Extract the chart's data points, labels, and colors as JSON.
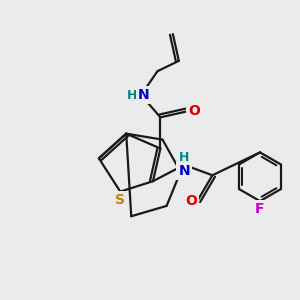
{
  "bg_color": "#ebebeb",
  "bond_color": "#1a1a1a",
  "bond_width": 1.6,
  "atom_labels": {
    "S": {
      "color": "#b8860b",
      "fontsize": 10,
      "fontweight": "bold"
    },
    "O": {
      "color": "#dd0000",
      "fontsize": 10,
      "fontweight": "bold"
    },
    "N": {
      "color": "#0000cc",
      "fontsize": 10,
      "fontweight": "bold"
    },
    "H": {
      "color": "#008888",
      "fontsize": 9,
      "fontweight": "bold"
    },
    "F": {
      "color": "#cc00cc",
      "fontsize": 10,
      "fontweight": "bold"
    }
  },
  "figsize": [
    3.0,
    3.0
  ],
  "dpi": 100
}
